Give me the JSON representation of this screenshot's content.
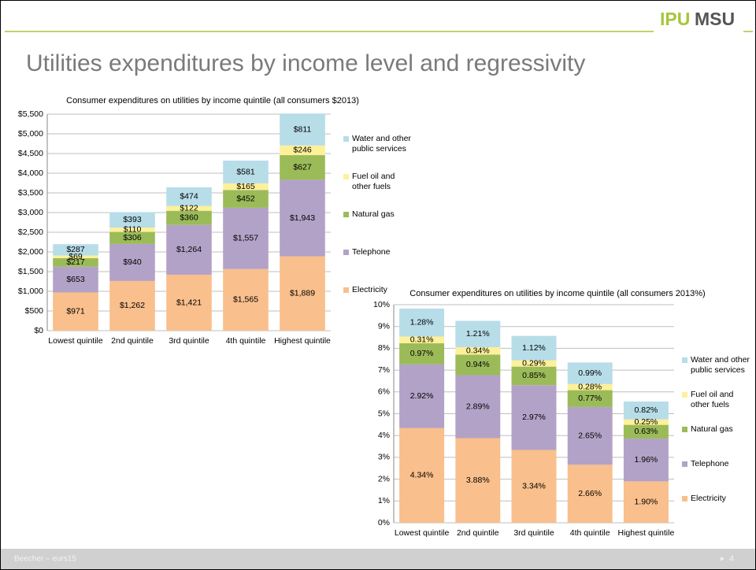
{
  "slide": {
    "logo_a": "IPU",
    "logo_b": "MSU",
    "title": "Utilities expenditures by income level and regressivity",
    "footer": "Beecher – eurs15",
    "page": "4"
  },
  "chart_data": [
    {
      "type": "stacked_bar",
      "title": "Consumer expenditures on utilities by income quintile (all consumers $2013)",
      "categories": [
        "Lowest quintile",
        "2nd quintile",
        "3rd quintile",
        "4th quintile",
        "Highest quintile"
      ],
      "series": [
        {
          "name": "Electricity",
          "color": "#f9bf8c",
          "values": [
            971,
            1262,
            1421,
            1565,
            1889
          ],
          "value_labels": [
            "$971",
            "$1,262",
            "$1,421",
            "$1,565",
            "$1,889"
          ]
        },
        {
          "name": "Telephone",
          "color": "#b3a2c7",
          "values": [
            653,
            940,
            1264,
            1557,
            1943
          ],
          "value_labels": [
            "$653",
            "$940",
            "$1,264",
            "$1,557",
            "$1,943"
          ]
        },
        {
          "name": "Natural gas",
          "color": "#9bbb59",
          "values": [
            217,
            306,
            360,
            452,
            627
          ],
          "value_labels": [
            "$217",
            "$306",
            "$360",
            "$452",
            "$627"
          ]
        },
        {
          "name": "Fuel oil and other fuels",
          "color": "#fff09a",
          "values": [
            69,
            110,
            122,
            165,
            246
          ],
          "value_labels": [
            "$69",
            "$110",
            "$122",
            "$165",
            "$246"
          ]
        },
        {
          "name": "Water and other public services",
          "color": "#b7dde8",
          "values": [
            287,
            393,
            474,
            581,
            811
          ],
          "value_labels": [
            "$287",
            "$393",
            "$474",
            "$581",
            "$811"
          ]
        }
      ],
      "ylim": [
        0,
        5500
      ],
      "yticks": [
        {
          "value": 0,
          "label": "$0"
        },
        {
          "value": 500,
          "label": "$500"
        },
        {
          "value": 1000,
          "label": "$1,000"
        },
        {
          "value": 1500,
          "label": "$1,500"
        },
        {
          "value": 2000,
          "label": "$2,000"
        },
        {
          "value": 2500,
          "label": "$2,500"
        },
        {
          "value": 3000,
          "label": "$3,000"
        },
        {
          "value": 3500,
          "label": "$3,500"
        },
        {
          "value": 4000,
          "label": "$4,000"
        },
        {
          "value": 4500,
          "label": "$4,500"
        },
        {
          "value": 5000,
          "label": "$5,000"
        },
        {
          "value": 5500,
          "label": "$5,500"
        }
      ],
      "grid": true,
      "legend": "right"
    },
    {
      "type": "stacked_bar",
      "title": "Consumer expenditures on utilities by income quintile (all consumers 2013%)",
      "categories": [
        "Lowest quintile",
        "2nd quintile",
        "3rd quintile",
        "4th quintile",
        "Highest quintile"
      ],
      "series": [
        {
          "name": "Electricity",
          "color": "#f9bf8c",
          "values": [
            4.34,
            3.88,
            3.34,
            2.66,
            1.9
          ],
          "value_labels": [
            "4.34%",
            "3.88%",
            "3.34%",
            "2.66%",
            "1.90%"
          ]
        },
        {
          "name": "Telephone",
          "color": "#b3a2c7",
          "values": [
            2.92,
            2.89,
            2.97,
            2.65,
            1.96
          ],
          "value_labels": [
            "2.92%",
            "2.89%",
            "2.97%",
            "2.65%",
            "1.96%"
          ]
        },
        {
          "name": "Natural gas",
          "color": "#9bbb59",
          "values": [
            0.97,
            0.94,
            0.85,
            0.77,
            0.63
          ],
          "value_labels": [
            "0.97%",
            "0.94%",
            "0.85%",
            "0.77%",
            "0.63%"
          ]
        },
        {
          "name": "Fuel oil and other fuels",
          "color": "#fff09a",
          "values": [
            0.31,
            0.34,
            0.29,
            0.28,
            0.25
          ],
          "value_labels": [
            "0.31%",
            "0.34%",
            "0.29%",
            "0.28%",
            "0.25%"
          ]
        },
        {
          "name": "Water and other public services",
          "color": "#b7dde8",
          "values": [
            1.28,
            1.21,
            1.12,
            0.99,
            0.82
          ],
          "value_labels": [
            "1.28%",
            "1.21%",
            "1.12%",
            "0.99%",
            "0.82%"
          ]
        }
      ],
      "ylim": [
        0,
        10
      ],
      "yticks": [
        {
          "value": 0,
          "label": "0%"
        },
        {
          "value": 1,
          "label": "1%"
        },
        {
          "value": 2,
          "label": "2%"
        },
        {
          "value": 3,
          "label": "3%"
        },
        {
          "value": 4,
          "label": "4%"
        },
        {
          "value": 5,
          "label": "5%"
        },
        {
          "value": 6,
          "label": "6%"
        },
        {
          "value": 7,
          "label": "7%"
        },
        {
          "value": 8,
          "label": "8%"
        },
        {
          "value": 9,
          "label": "9%"
        },
        {
          "value": 10,
          "label": "10%"
        }
      ],
      "grid": true,
      "legend": "right"
    }
  ]
}
